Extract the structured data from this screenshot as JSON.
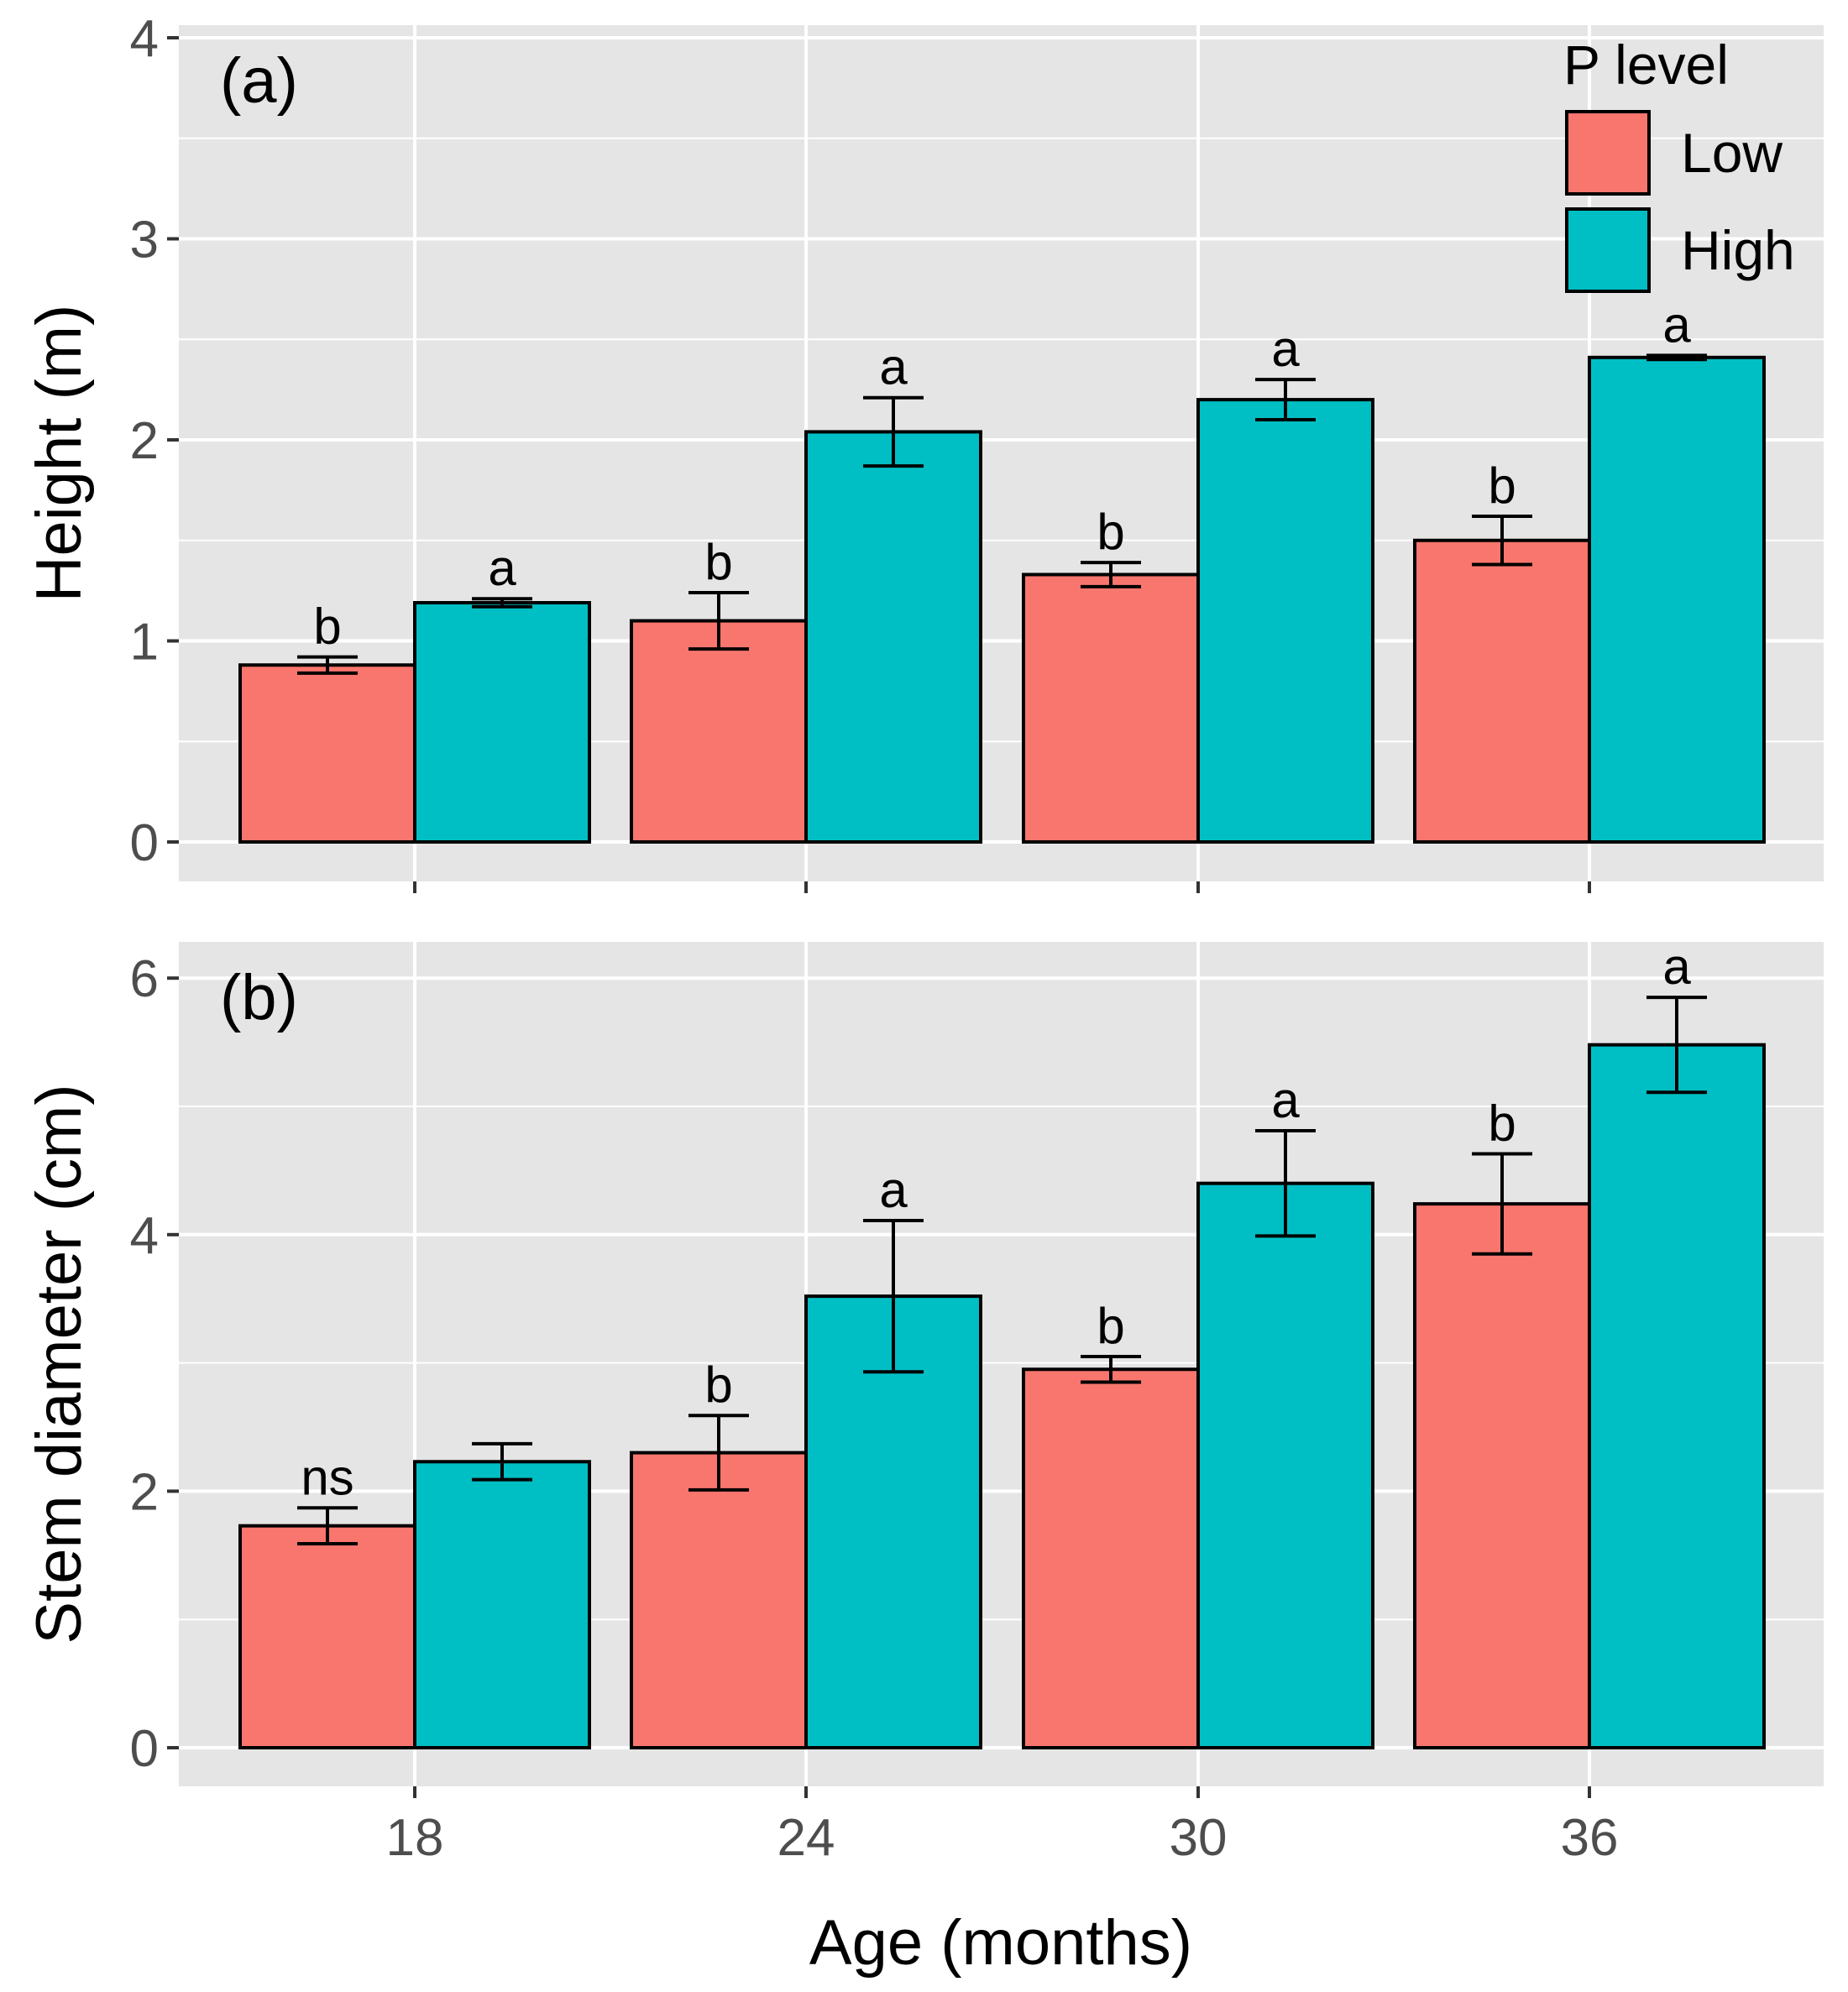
{
  "chart_data": [
    {
      "type": "bar",
      "panel_label": "(a)",
      "categories": [
        "18",
        "24",
        "30",
        "36"
      ],
      "ylabel": "Height (m)",
      "ylim": [
        0,
        4
      ],
      "yticks": [
        "0",
        "1",
        "2",
        "3",
        "4"
      ],
      "grid": true,
      "series": [
        {
          "name": "Low",
          "color": "#F8766D",
          "values": [
            0.88,
            1.1,
            1.33,
            1.5
          ],
          "errors": [
            0.04,
            0.14,
            0.06,
            0.12
          ],
          "labels": [
            "b",
            "b",
            "b",
            "b"
          ]
        },
        {
          "name": "High",
          "color": "#00BFC4",
          "values": [
            1.19,
            2.04,
            2.2,
            2.41
          ],
          "errors": [
            0.02,
            0.17,
            0.1,
            0.01
          ],
          "labels": [
            "a",
            "a",
            "a",
            "a"
          ]
        }
      ]
    },
    {
      "type": "bar",
      "panel_label": "(b)",
      "categories": [
        "18",
        "24",
        "30",
        "36"
      ],
      "xlabel": "Age (months)",
      "ylabel": "Stem diameter (cm)",
      "ylim": [
        0,
        6
      ],
      "yticks": [
        "0",
        "2",
        "4",
        "6"
      ],
      "grid": true,
      "series": [
        {
          "name": "Low",
          "color": "#F8766D",
          "values": [
            1.73,
            2.3,
            2.95,
            4.24
          ],
          "errors": [
            0.14,
            0.29,
            0.1,
            0.39
          ],
          "labels": [
            "ns",
            "b",
            "b",
            "b"
          ]
        },
        {
          "name": "High",
          "color": "#00BFC4",
          "values": [
            2.23,
            3.52,
            4.4,
            5.48
          ],
          "errors": [
            0.14,
            0.59,
            0.41,
            0.37
          ],
          "labels": [
            "",
            "a",
            "a",
            "a"
          ]
        }
      ]
    }
  ],
  "legend": {
    "title": "P level",
    "position": "top-right",
    "items": [
      {
        "label": "Low",
        "color": "#F8766D"
      },
      {
        "label": "High",
        "color": "#00BFC4"
      }
    ]
  },
  "x_axis_title": "Age (months)",
  "colors": {
    "panel_background": "#E5E5E5",
    "gridline": "#FFFFFF",
    "bar_outline": "#000000"
  }
}
